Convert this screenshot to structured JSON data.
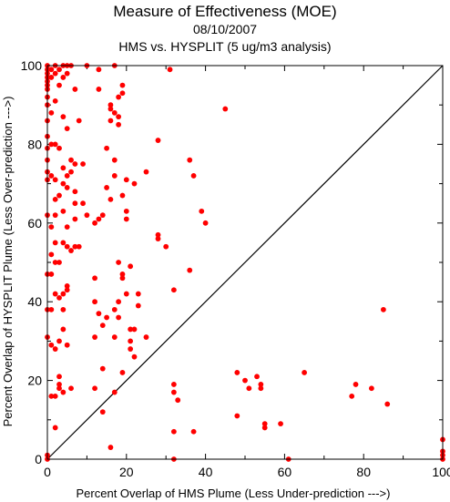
{
  "chart_data": {
    "type": "scatter",
    "title": "Measure of Effectiveness (MOE)",
    "subtitle_date": "08/10/2007",
    "subtitle_analysis": "HMS vs. HYSPLIT  (5 ug/m3 analysis)",
    "xlabel": "Percent Overlap of HMS Plume (Less Under-prediction --->)",
    "ylabel": "Percent Overlap of HYSPLIT Plume (Less Over-prediction --->)",
    "xlim": [
      0,
      100
    ],
    "ylim": [
      0,
      100
    ],
    "x_ticks": [
      "0",
      "20",
      "40",
      "60",
      "80",
      "100"
    ],
    "y_ticks": [
      "0",
      "20",
      "40",
      "60",
      "80",
      "100"
    ],
    "reference_line": "y = x",
    "marker_color": "#ff0000",
    "points": [
      [
        0,
        100
      ],
      [
        0,
        99
      ],
      [
        0,
        98
      ],
      [
        0,
        97
      ],
      [
        0,
        96
      ],
      [
        0,
        95
      ],
      [
        0,
        94
      ],
      [
        0,
        92
      ],
      [
        0,
        90
      ],
      [
        0,
        86
      ],
      [
        0,
        82
      ],
      [
        0,
        79
      ],
      [
        0,
        76
      ],
      [
        0,
        73
      ],
      [
        0,
        71
      ],
      [
        0,
        62
      ],
      [
        0,
        47
      ],
      [
        0,
        38
      ],
      [
        0,
        31
      ],
      [
        0,
        1
      ],
      [
        0,
        0
      ],
      [
        1,
        99
      ],
      [
        1,
        97
      ],
      [
        1,
        88
      ],
      [
        1,
        80
      ],
      [
        1,
        72
      ],
      [
        1,
        59
      ],
      [
        1,
        52
      ],
      [
        1,
        47
      ],
      [
        1,
        38
      ],
      [
        1,
        29
      ],
      [
        1,
        16
      ],
      [
        2,
        100
      ],
      [
        2,
        98
      ],
      [
        2,
        91
      ],
      [
        2,
        80
      ],
      [
        2,
        71
      ],
      [
        2,
        66
      ],
      [
        2,
        62
      ],
      [
        2,
        55
      ],
      [
        2,
        50
      ],
      [
        2,
        42
      ],
      [
        2,
        28
      ],
      [
        2,
        16
      ],
      [
        2,
        8
      ],
      [
        3,
        99
      ],
      [
        3,
        95
      ],
      [
        3,
        79
      ],
      [
        3,
        67
      ],
      [
        3,
        50
      ],
      [
        3,
        41
      ],
      [
        3,
        30
      ],
      [
        3,
        21
      ],
      [
        3,
        19
      ],
      [
        3,
        18
      ],
      [
        4,
        100
      ],
      [
        4,
        97
      ],
      [
        4,
        87
      ],
      [
        4,
        74
      ],
      [
        4,
        70
      ],
      [
        4,
        63
      ],
      [
        4,
        55
      ],
      [
        4,
        42
      ],
      [
        4,
        38
      ],
      [
        4,
        33
      ],
      [
        4,
        17
      ],
      [
        5,
        100
      ],
      [
        5,
        98
      ],
      [
        5,
        84
      ],
      [
        5,
        72
      ],
      [
        5,
        69
      ],
      [
        5,
        59
      ],
      [
        5,
        54
      ],
      [
        5,
        44
      ],
      [
        5,
        43
      ],
      [
        5,
        29
      ],
      [
        6,
        100
      ],
      [
        6,
        76
      ],
      [
        6,
        73
      ],
      [
        6,
        53
      ],
      [
        6,
        18
      ],
      [
        7,
        94
      ],
      [
        7,
        75
      ],
      [
        7,
        68
      ],
      [
        7,
        65
      ],
      [
        7,
        61
      ],
      [
        7,
        54
      ],
      [
        8,
        86
      ],
      [
        8,
        54
      ],
      [
        9,
        75
      ],
      [
        9,
        65
      ],
      [
        10,
        100
      ],
      [
        10,
        62
      ],
      [
        12,
        60
      ],
      [
        12,
        46
      ],
      [
        12,
        40
      ],
      [
        12,
        31
      ],
      [
        12,
        18
      ],
      [
        13,
        99
      ],
      [
        13,
        94
      ],
      [
        13,
        61
      ],
      [
        13,
        37
      ],
      [
        14,
        62
      ],
      [
        14,
        34
      ],
      [
        14,
        23
      ],
      [
        14,
        12
      ],
      [
        15,
        79
      ],
      [
        15,
        69
      ],
      [
        15,
        36
      ],
      [
        16,
        90
      ],
      [
        16,
        89
      ],
      [
        16,
        86
      ],
      [
        16,
        66
      ],
      [
        16,
        3
      ],
      [
        17,
        100
      ],
      [
        17,
        88
      ],
      [
        17,
        76
      ],
      [
        17,
        72
      ],
      [
        17,
        38
      ],
      [
        17,
        31
      ],
      [
        17,
        17
      ],
      [
        18,
        92
      ],
      [
        18,
        87
      ],
      [
        18,
        85
      ],
      [
        18,
        50
      ],
      [
        18,
        40
      ],
      [
        18,
        36
      ],
      [
        19,
        95
      ],
      [
        19,
        93
      ],
      [
        19,
        67
      ],
      [
        19,
        47
      ],
      [
        19,
        46
      ],
      [
        19,
        22
      ],
      [
        20,
        71
      ],
      [
        20,
        63
      ],
      [
        20,
        61
      ],
      [
        20,
        42
      ],
      [
        21,
        49
      ],
      [
        21,
        33
      ],
      [
        21,
        30
      ],
      [
        21,
        28
      ],
      [
        22,
        70
      ],
      [
        22,
        33
      ],
      [
        22,
        26
      ],
      [
        23,
        39
      ],
      [
        23,
        42
      ],
      [
        25,
        73
      ],
      [
        25,
        31
      ],
      [
        28,
        81
      ],
      [
        28,
        57
      ],
      [
        28,
        56
      ],
      [
        30,
        54
      ],
      [
        31,
        99
      ],
      [
        32,
        43
      ],
      [
        32,
        19
      ],
      [
        32,
        17
      ],
      [
        32,
        7
      ],
      [
        32,
        0
      ],
      [
        33,
        15
      ],
      [
        36,
        76
      ],
      [
        36,
        48
      ],
      [
        37,
        72
      ],
      [
        37,
        7
      ],
      [
        39,
        63
      ],
      [
        40,
        60
      ],
      [
        45,
        89
      ],
      [
        48,
        22
      ],
      [
        48,
        11
      ],
      [
        50,
        20
      ],
      [
        51,
        18
      ],
      [
        53,
        21
      ],
      [
        54,
        18
      ],
      [
        54,
        19
      ],
      [
        55,
        8
      ],
      [
        55,
        9
      ],
      [
        59,
        9
      ],
      [
        61,
        0
      ],
      [
        65,
        22
      ],
      [
        77,
        16
      ],
      [
        78,
        19
      ],
      [
        82,
        18
      ],
      [
        85,
        38
      ],
      [
        86,
        14
      ],
      [
        100,
        5
      ],
      [
        100,
        2
      ],
      [
        100,
        1
      ],
      [
        100,
        0
      ]
    ]
  }
}
